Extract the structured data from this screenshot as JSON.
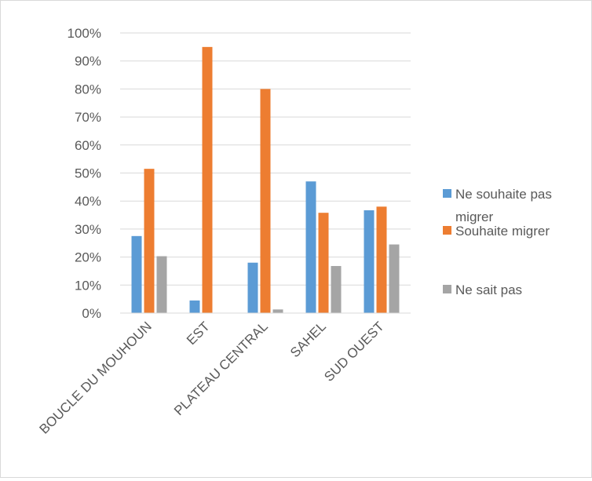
{
  "chart_data": {
    "type": "bar",
    "categories": [
      "BOUCLE DU MOUHOUN",
      "EST",
      "PLATEAU CENTRAL",
      "SAHEL",
      "SUD OUEST"
    ],
    "series": [
      {
        "name": "Ne souhaite pas migrer",
        "values": [
          0.275,
          0.045,
          0.18,
          0.47,
          0.367
        ],
        "color": "#5b9bd5"
      },
      {
        "name": "Souhaite migrer",
        "values": [
          0.515,
          0.95,
          0.8,
          0.358,
          0.38
        ],
        "color": "#ed7d31"
      },
      {
        "name": "Ne sait pas",
        "values": [
          0.203,
          0.0,
          0.013,
          0.168,
          0.245
        ],
        "color": "#a5a5a5"
      }
    ],
    "ylim": [
      0,
      1
    ],
    "yticks": [
      "0%",
      "10%",
      "20%",
      "30%",
      "40%",
      "50%",
      "60%",
      "70%",
      "80%",
      "90%",
      "100%"
    ],
    "grid": true,
    "legend": "right",
    "legend_labels": [
      {
        "lines": [
          "Ne souhaite pas",
          "migrer"
        ]
      },
      {
        "lines": [
          "Souhaite migrer"
        ]
      },
      {
        "lines": [
          "Ne sait pas"
        ]
      }
    ],
    "gridColor": "#d9d9d9",
    "textColor": "#595959"
  }
}
